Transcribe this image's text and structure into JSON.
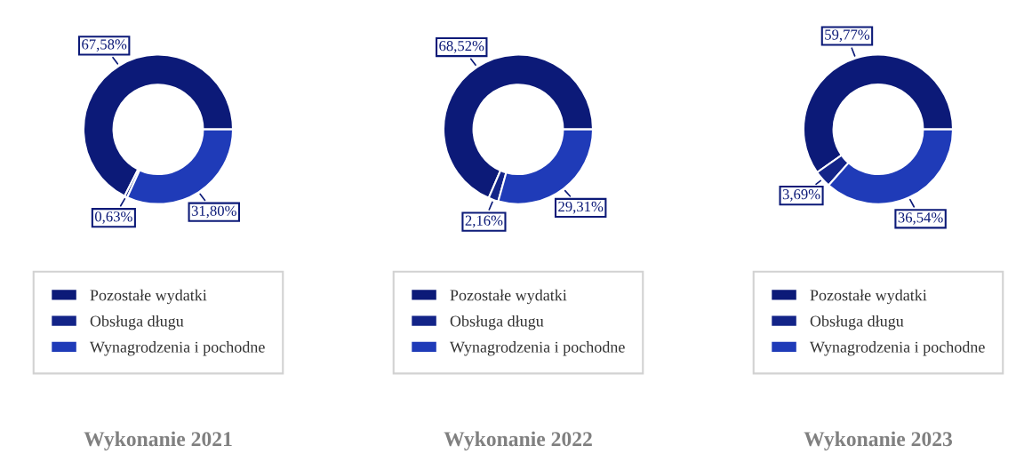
{
  "chart_data": [
    {
      "type": "donut",
      "title": "Wykonanie 2021",
      "categories": [
        "Pozostałe wydatki",
        "Obsługa długu",
        "Wynagrodzenia i pochodne"
      ],
      "values": [
        67.58,
        0.63,
        31.8
      ],
      "colors": [
        "#0c1a78",
        "#132488",
        "#1f3bb8"
      ],
      "value_labels": [
        "67,58%",
        "0,63%",
        "31,80%"
      ],
      "legend": "bottom"
    },
    {
      "type": "donut",
      "title": "Wykonanie 2022",
      "categories": [
        "Pozostałe wydatki",
        "Obsługa długu",
        "Wynagrodzenia i pochodne"
      ],
      "values": [
        68.52,
        2.16,
        29.31
      ],
      "colors": [
        "#0c1a78",
        "#132488",
        "#1f3bb8"
      ],
      "value_labels": [
        "68,52%",
        "2,16%",
        "29,31%"
      ],
      "legend": "bottom"
    },
    {
      "type": "donut",
      "title": "Wykonanie 2023",
      "categories": [
        "Pozostałe wydatki",
        "Obsługa długu",
        "Wynagrodzenia i pochodne"
      ],
      "values": [
        59.77,
        3.69,
        36.54
      ],
      "colors": [
        "#0c1a78",
        "#132488",
        "#1f3bb8"
      ],
      "value_labels": [
        "59,77%",
        "3,69%",
        "36,54%"
      ],
      "legend": "bottom"
    }
  ]
}
